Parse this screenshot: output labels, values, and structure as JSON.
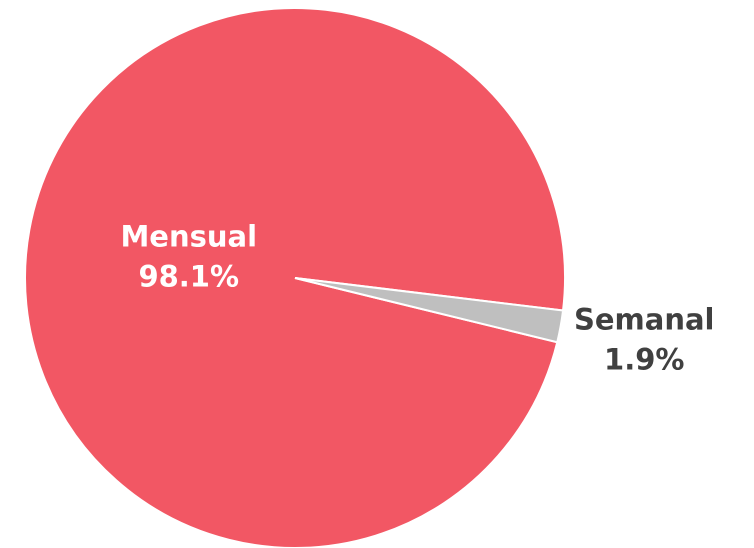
{
  "chart_data": {
    "type": "pie",
    "categories": [
      "Mensual",
      "Semanal"
    ],
    "values": [
      98.1,
      1.9
    ],
    "value_labels": [
      "98.1%",
      "1.9%"
    ],
    "colors": [
      "#f25764",
      "#bfbfbf"
    ],
    "label_colors": [
      "#ffffff",
      "#404040"
    ]
  }
}
